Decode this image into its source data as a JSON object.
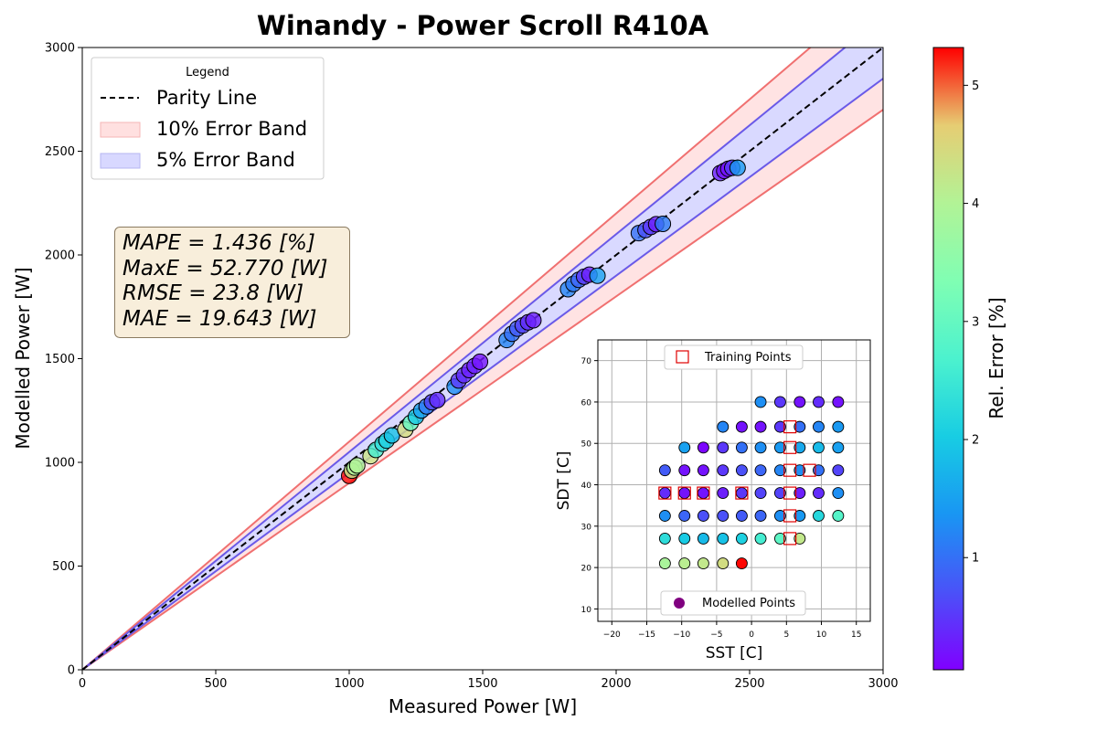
{
  "chart_data": [
    {
      "type": "scatter",
      "title": "Winandy - Power Scroll R410A",
      "xlabel": "Measured Power [W]",
      "ylabel": "Modelled Power [W]",
      "xlim": [
        0,
        3000
      ],
      "ylim": [
        0,
        3000
      ],
      "xticks": [
        "0",
        "500",
        "1000",
        "1500",
        "2000",
        "2500",
        "3000"
      ],
      "yticks": [
        "0",
        "500",
        "1000",
        "1500",
        "2000",
        "2500",
        "3000"
      ],
      "grid": false,
      "legend": {
        "title": "Legend",
        "placement": "upper-left",
        "entries": [
          "Parity Line",
          "10% Error Band",
          "5% Error Band"
        ]
      },
      "bands": [
        {
          "name": "10% Error Band",
          "fraction": 0.1,
          "fill": "#ffe3e3",
          "edge": "#f07070"
        },
        {
          "name": "5% Error Band",
          "fraction": 0.05,
          "fill": "#d9d9ff",
          "edge": "#6a5ae8"
        }
      ],
      "metrics": [
        "MAPE = 1.436 [%]",
        "MaxE = 52.770 [W]",
        "RMSE = 23.8 [W]",
        "MAE = 19.643 [W]"
      ],
      "colorbar": {
        "label": "Rel. Error [%]",
        "range": [
          0.05,
          5.32
        ],
        "ticks": [
          "1",
          "2",
          "3",
          "4",
          "5"
        ],
        "colormap": "rainbow"
      },
      "points": [
        {
          "x": 1000,
          "y": 935,
          "e": 5.3
        },
        {
          "x": 1010,
          "y": 960,
          "e": 4.2
        },
        {
          "x": 1020,
          "y": 975,
          "e": 3.9
        },
        {
          "x": 1030,
          "y": 985,
          "e": 4.0
        },
        {
          "x": 1080,
          "y": 1030,
          "e": 4.3
        },
        {
          "x": 1100,
          "y": 1060,
          "e": 2.6
        },
        {
          "x": 1125,
          "y": 1090,
          "e": 2.3
        },
        {
          "x": 1140,
          "y": 1105,
          "e": 2.1
        },
        {
          "x": 1160,
          "y": 1130,
          "e": 1.9
        },
        {
          "x": 1210,
          "y": 1158,
          "e": 4.4
        },
        {
          "x": 1230,
          "y": 1190,
          "e": 3.0
        },
        {
          "x": 1250,
          "y": 1220,
          "e": 2.0
        },
        {
          "x": 1270,
          "y": 1250,
          "e": 1.5
        },
        {
          "x": 1290,
          "y": 1270,
          "e": 1.1
        },
        {
          "x": 1310,
          "y": 1290,
          "e": 0.6
        },
        {
          "x": 1330,
          "y": 1300,
          "e": 0.4
        },
        {
          "x": 1395,
          "y": 1365,
          "e": 1.3
        },
        {
          "x": 1410,
          "y": 1395,
          "e": 0.5
        },
        {
          "x": 1430,
          "y": 1420,
          "e": 0.4
        },
        {
          "x": 1450,
          "y": 1445,
          "e": 0.3
        },
        {
          "x": 1470,
          "y": 1465,
          "e": 0.3
        },
        {
          "x": 1490,
          "y": 1485,
          "e": 0.2
        },
        {
          "x": 1590,
          "y": 1590,
          "e": 1.2
        },
        {
          "x": 1610,
          "y": 1620,
          "e": 1.0
        },
        {
          "x": 1630,
          "y": 1645,
          "e": 0.8
        },
        {
          "x": 1650,
          "y": 1660,
          "e": 0.6
        },
        {
          "x": 1670,
          "y": 1675,
          "e": 0.4
        },
        {
          "x": 1690,
          "y": 1685,
          "e": 0.3
        },
        {
          "x": 1820,
          "y": 1835,
          "e": 1.2
        },
        {
          "x": 1840,
          "y": 1860,
          "e": 1.1
        },
        {
          "x": 1860,
          "y": 1880,
          "e": 0.9
        },
        {
          "x": 1880,
          "y": 1895,
          "e": 0.5
        },
        {
          "x": 1900,
          "y": 1905,
          "e": 0.3
        },
        {
          "x": 1930,
          "y": 1900,
          "e": 1.5
        },
        {
          "x": 2085,
          "y": 2105,
          "e": 1.0
        },
        {
          "x": 2110,
          "y": 2120,
          "e": 0.7
        },
        {
          "x": 2130,
          "y": 2135,
          "e": 0.5
        },
        {
          "x": 2150,
          "y": 2148,
          "e": 0.3
        },
        {
          "x": 2175,
          "y": 2150,
          "e": 1.1
        },
        {
          "x": 2390,
          "y": 2395,
          "e": 0.3
        },
        {
          "x": 2405,
          "y": 2405,
          "e": 0.2
        },
        {
          "x": 2420,
          "y": 2415,
          "e": 0.2
        },
        {
          "x": 2435,
          "y": 2420,
          "e": 0.5
        },
        {
          "x": 2455,
          "y": 2420,
          "e": 1.4
        }
      ]
    },
    {
      "type": "scatter",
      "xlabel": "SST [C]",
      "ylabel": "SDT [C]",
      "xlim": [
        -22,
        17
      ],
      "ylim": [
        7,
        75
      ],
      "xticks": [
        "−20",
        "−15",
        "−10",
        "−5",
        "0",
        "5",
        "10",
        "15"
      ],
      "yticks": [
        "10",
        "20",
        "30",
        "40",
        "50",
        "60",
        "70"
      ],
      "grid": true,
      "legend_entries": [
        "Training Points",
        "Modelled Points"
      ],
      "training_points": [
        [
          5.5,
          54
        ],
        [
          5.5,
          49
        ],
        [
          5.5,
          43.5
        ],
        [
          8.3,
          43.5
        ],
        [
          -12.4,
          38
        ],
        [
          -9.6,
          38
        ],
        [
          -6.9,
          38
        ],
        [
          -1.4,
          38
        ],
        [
          5.5,
          38
        ],
        [
          5.5,
          32.5
        ],
        [
          5.5,
          27
        ]
      ],
      "modelled_points": [
        {
          "sst": 1.3,
          "sdt": 60,
          "e": 1.3
        },
        {
          "sst": 4.1,
          "sdt": 60,
          "e": 0.5
        },
        {
          "sst": 6.9,
          "sdt": 60,
          "e": 0.2
        },
        {
          "sst": 9.6,
          "sdt": 60,
          "e": 0.4
        },
        {
          "sst": 12.4,
          "sdt": 60,
          "e": 0.2
        },
        {
          "sst": -4.1,
          "sdt": 54,
          "e": 1.2
        },
        {
          "sst": -1.4,
          "sdt": 54,
          "e": 0.2
        },
        {
          "sst": 1.3,
          "sdt": 54,
          "e": 0.2
        },
        {
          "sst": 4.1,
          "sdt": 54,
          "e": 0.5
        },
        {
          "sst": 6.9,
          "sdt": 54,
          "e": 1.0
        },
        {
          "sst": 9.6,
          "sdt": 54,
          "e": 1.2
        },
        {
          "sst": 12.4,
          "sdt": 54,
          "e": 1.4
        },
        {
          "sst": -9.6,
          "sdt": 49,
          "e": 1.5
        },
        {
          "sst": -6.9,
          "sdt": 49,
          "e": 0.1
        },
        {
          "sst": -4.1,
          "sdt": 49,
          "e": 0.5
        },
        {
          "sst": -1.4,
          "sdt": 49,
          "e": 1.0
        },
        {
          "sst": 1.3,
          "sdt": 49,
          "e": 1.3
        },
        {
          "sst": 4.1,
          "sdt": 49,
          "e": 1.4
        },
        {
          "sst": 6.9,
          "sdt": 49,
          "e": 1.6
        },
        {
          "sst": 9.6,
          "sdt": 49,
          "e": 1.8
        },
        {
          "sst": 12.4,
          "sdt": 49,
          "e": 1.5
        },
        {
          "sst": -12.4,
          "sdt": 43.5,
          "e": 0.8
        },
        {
          "sst": -9.6,
          "sdt": 43.5,
          "e": 0.2
        },
        {
          "sst": -6.9,
          "sdt": 43.5,
          "e": 0.2
        },
        {
          "sst": -4.1,
          "sdt": 43.5,
          "e": 0.5
        },
        {
          "sst": -1.4,
          "sdt": 43.5,
          "e": 0.7
        },
        {
          "sst": 1.3,
          "sdt": 43.5,
          "e": 0.9
        },
        {
          "sst": 4.1,
          "sdt": 43.5,
          "e": 1.2
        },
        {
          "sst": 6.9,
          "sdt": 43.5,
          "e": 1.3
        },
        {
          "sst": 9.6,
          "sdt": 43.5,
          "e": 1.0
        },
        {
          "sst": 12.4,
          "sdt": 43.5,
          "e": 0.6
        },
        {
          "sst": -12.4,
          "sdt": 38,
          "e": 0.4
        },
        {
          "sst": -9.6,
          "sdt": 38,
          "e": 0.2
        },
        {
          "sst": -6.9,
          "sdt": 38,
          "e": 0.2
        },
        {
          "sst": -4.1,
          "sdt": 38,
          "e": 0.3
        },
        {
          "sst": -1.4,
          "sdt": 38,
          "e": 0.5
        },
        {
          "sst": 1.3,
          "sdt": 38,
          "e": 0.6
        },
        {
          "sst": 4.1,
          "sdt": 38,
          "e": 0.6
        },
        {
          "sst": 6.9,
          "sdt": 38,
          "e": 0.3
        },
        {
          "sst": 9.6,
          "sdt": 38,
          "e": 0.4
        },
        {
          "sst": 12.4,
          "sdt": 38,
          "e": 1.3
        },
        {
          "sst": -12.4,
          "sdt": 32.5,
          "e": 1.3
        },
        {
          "sst": -9.6,
          "sdt": 32.5,
          "e": 0.9
        },
        {
          "sst": -6.9,
          "sdt": 32.5,
          "e": 0.7
        },
        {
          "sst": -4.1,
          "sdt": 32.5,
          "e": 0.7
        },
        {
          "sst": -1.4,
          "sdt": 32.5,
          "e": 0.8
        },
        {
          "sst": 1.3,
          "sdt": 32.5,
          "e": 0.9
        },
        {
          "sst": 4.1,
          "sdt": 32.5,
          "e": 1.3
        },
        {
          "sst": 6.9,
          "sdt": 32.5,
          "e": 1.4
        },
        {
          "sst": 9.6,
          "sdt": 32.5,
          "e": 2.2
        },
        {
          "sst": 12.4,
          "sdt": 32.5,
          "e": 2.8
        },
        {
          "sst": -12.4,
          "sdt": 27,
          "e": 2.3
        },
        {
          "sst": -9.6,
          "sdt": 27,
          "e": 2.0
        },
        {
          "sst": -6.9,
          "sdt": 27,
          "e": 1.8
        },
        {
          "sst": -4.1,
          "sdt": 27,
          "e": 1.9
        },
        {
          "sst": -1.4,
          "sdt": 27,
          "e": 2.1
        },
        {
          "sst": 1.3,
          "sdt": 27,
          "e": 2.6
        },
        {
          "sst": 4.1,
          "sdt": 27,
          "e": 2.9
        },
        {
          "sst": 6.9,
          "sdt": 27,
          "e": 4.2
        },
        {
          "sst": -12.4,
          "sdt": 21,
          "e": 3.9
        },
        {
          "sst": -9.6,
          "sdt": 21,
          "e": 4.1
        },
        {
          "sst": -6.9,
          "sdt": 21,
          "e": 4.2
        },
        {
          "sst": -4.1,
          "sdt": 21,
          "e": 4.4
        },
        {
          "sst": -1.4,
          "sdt": 21,
          "e": 5.3
        }
      ]
    }
  ]
}
